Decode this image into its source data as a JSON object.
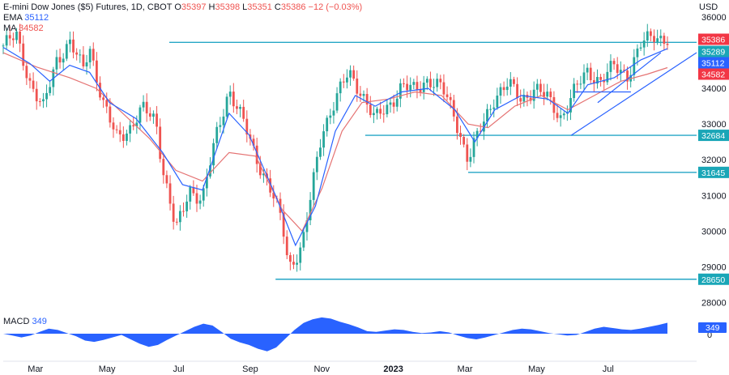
{
  "header": {
    "title": "E-mini Dow Jones ($5) Futures, 1D, CBOT",
    "ohlc": [
      {
        "label": "O",
        "value": "35397"
      },
      {
        "label": "H",
        "value": "35398"
      },
      {
        "label": "L",
        "value": "35351"
      },
      {
        "label": "C",
        "value": "35386"
      }
    ],
    "change": "−12 (−0.03%)",
    "ema_label": "EMA",
    "ema_value": "35112",
    "ma_label": "MA",
    "ma_value": "34582",
    "macd_label": "MACD",
    "macd_value": "349"
  },
  "currency": "USD",
  "colors": {
    "up": "#26a69a",
    "down": "#ef5350",
    "level_line": "#26a6c6",
    "ema": "#2962ff",
    "ma": "#e57373",
    "trendline": "#2962ff",
    "macd": "#2962ff",
    "badge_level": "#1aa6b7",
    "badge_last": "#f23645",
    "badge_ema": "#2962ff",
    "badge_ma": "#f23645"
  },
  "chart_data": {
    "type": "candlestick",
    "y_ticks": [
      28000,
      29000,
      30000,
      31000,
      32000,
      33000,
      34000,
      35000,
      36000
    ],
    "ylim": [
      27850,
      36250
    ],
    "x_labels": [
      "Mar",
      "May",
      "Jul",
      "Sep",
      "Nov",
      "2023",
      "Mar",
      "May",
      "Jul"
    ],
    "x_label_bold": "2023",
    "price_badges": [
      {
        "label": "35386",
        "value": 35386,
        "kind": "last"
      },
      {
        "label": "35289",
        "value": 35289,
        "kind": "level"
      },
      {
        "label": "35112",
        "value": 35112,
        "kind": "ema"
      },
      {
        "label": "34582",
        "value": 34582,
        "kind": "ma"
      },
      {
        "label": "32684",
        "value": 32684,
        "kind": "level"
      },
      {
        "label": "31645",
        "value": 31645,
        "kind": "level"
      },
      {
        "label": "28650",
        "value": 28650,
        "kind": "level"
      }
    ],
    "horizontal_levels": [
      {
        "value": 35289,
        "from_index": 0.25
      },
      {
        "value": 32684,
        "from_index": 0.545
      },
      {
        "value": 31645,
        "from_index": 0.7
      },
      {
        "value": 28650,
        "from_index": 0.41
      }
    ],
    "path_points": [
      [
        0.0,
        35200
      ],
      [
        0.02,
        35450
      ],
      [
        0.04,
        34200
      ],
      [
        0.06,
        33400
      ],
      [
        0.08,
        34800
      ],
      [
        0.1,
        35300
      ],
      [
        0.12,
        34500
      ],
      [
        0.13,
        35200
      ],
      [
        0.15,
        33600
      ],
      [
        0.17,
        32600
      ],
      [
        0.19,
        32900
      ],
      [
        0.21,
        33400
      ],
      [
        0.23,
        33100
      ],
      [
        0.24,
        31800
      ],
      [
        0.26,
        30000
      ],
      [
        0.27,
        30500
      ],
      [
        0.28,
        31200
      ],
      [
        0.3,
        30900
      ],
      [
        0.32,
        32600
      ],
      [
        0.34,
        34000
      ],
      [
        0.36,
        33100
      ],
      [
        0.38,
        32100
      ],
      [
        0.4,
        31300
      ],
      [
        0.42,
        30200
      ],
      [
        0.43,
        29000
      ],
      [
        0.45,
        29600
      ],
      [
        0.46,
        30600
      ],
      [
        0.48,
        32800
      ],
      [
        0.5,
        33700
      ],
      [
        0.52,
        34400
      ],
      [
        0.54,
        33900
      ],
      [
        0.56,
        33100
      ],
      [
        0.58,
        33500
      ],
      [
        0.6,
        34100
      ],
      [
        0.62,
        33900
      ],
      [
        0.64,
        34300
      ],
      [
        0.66,
        34000
      ],
      [
        0.68,
        33200
      ],
      [
        0.7,
        32000
      ],
      [
        0.72,
        32900
      ],
      [
        0.74,
        33800
      ],
      [
        0.76,
        34100
      ],
      [
        0.78,
        33700
      ],
      [
        0.8,
        34000
      ],
      [
        0.82,
        33700
      ],
      [
        0.84,
        33200
      ],
      [
        0.86,
        33900
      ],
      [
        0.88,
        34500
      ],
      [
        0.9,
        34200
      ],
      [
        0.92,
        34600
      ],
      [
        0.94,
        34400
      ],
      [
        0.96,
        35200
      ],
      [
        0.98,
        35500
      ],
      [
        1.0,
        35386
      ]
    ],
    "ema_points": [
      [
        0.0,
        35150
      ],
      [
        0.04,
        34700
      ],
      [
        0.07,
        34200
      ],
      [
        0.1,
        34650
      ],
      [
        0.13,
        34450
      ],
      [
        0.16,
        33600
      ],
      [
        0.2,
        33150
      ],
      [
        0.24,
        32200
      ],
      [
        0.27,
        31300
      ],
      [
        0.3,
        31150
      ],
      [
        0.34,
        33300
      ],
      [
        0.37,
        32700
      ],
      [
        0.41,
        31000
      ],
      [
        0.44,
        29600
      ],
      [
        0.47,
        30700
      ],
      [
        0.5,
        32800
      ],
      [
        0.53,
        33800
      ],
      [
        0.56,
        33500
      ],
      [
        0.6,
        33900
      ],
      [
        0.64,
        34000
      ],
      [
        0.68,
        33400
      ],
      [
        0.71,
        32500
      ],
      [
        0.74,
        33400
      ],
      [
        0.78,
        33800
      ],
      [
        0.82,
        33700
      ],
      [
        0.85,
        33300
      ],
      [
        0.88,
        34100
      ],
      [
        0.92,
        34300
      ],
      [
        0.96,
        34800
      ],
      [
        1.0,
        35112
      ]
    ],
    "ma_points": [
      [
        0.0,
        35000
      ],
      [
        0.05,
        34600
      ],
      [
        0.1,
        34300
      ],
      [
        0.14,
        34000
      ],
      [
        0.18,
        33300
      ],
      [
        0.22,
        32600
      ],
      [
        0.26,
        31700
      ],
      [
        0.3,
        31400
      ],
      [
        0.34,
        32200
      ],
      [
        0.38,
        32100
      ],
      [
        0.42,
        30600
      ],
      [
        0.45,
        30000
      ],
      [
        0.48,
        31200
      ],
      [
        0.51,
        32800
      ],
      [
        0.54,
        33600
      ],
      [
        0.58,
        33700
      ],
      [
        0.62,
        33900
      ],
      [
        0.66,
        33800
      ],
      [
        0.7,
        33000
      ],
      [
        0.73,
        32900
      ],
      [
        0.77,
        33500
      ],
      [
        0.81,
        33800
      ],
      [
        0.85,
        33400
      ],
      [
        0.89,
        33800
      ],
      [
        0.93,
        34200
      ],
      [
        0.97,
        34400
      ],
      [
        1.0,
        34582
      ]
    ],
    "trendlines": [
      {
        "from": [
          0.855,
          32684
        ],
        "to": [
          1.06,
          35000
        ]
      },
      {
        "from": [
          0.86,
          33900
        ],
        "to": [
          0.945,
          33900
        ]
      },
      {
        "from": [
          0.895,
          33600
        ],
        "to": [
          0.99,
          35000
        ]
      }
    ],
    "macd_values": [
      0,
      -60,
      -120,
      -60,
      60,
      160,
      120,
      20,
      -80,
      -220,
      -260,
      -200,
      -120,
      -40,
      -180,
      -320,
      -420,
      -360,
      -200,
      -60,
      80,
      220,
      320,
      260,
      60,
      -160,
      -280,
      -360,
      -480,
      -560,
      -440,
      -160,
      120,
      340,
      460,
      520,
      480,
      380,
      300,
      200,
      80,
      60,
      100,
      140,
      120,
      60,
      20,
      40,
      80,
      40,
      -60,
      -140,
      -180,
      -120,
      -40,
      40,
      120,
      160,
      140,
      80,
      20,
      -20,
      -60,
      -40,
      60,
      160,
      220,
      180,
      140,
      120,
      160,
      220,
      280,
      349
    ],
    "macd_ylim": [
      -620,
      620
    ]
  }
}
